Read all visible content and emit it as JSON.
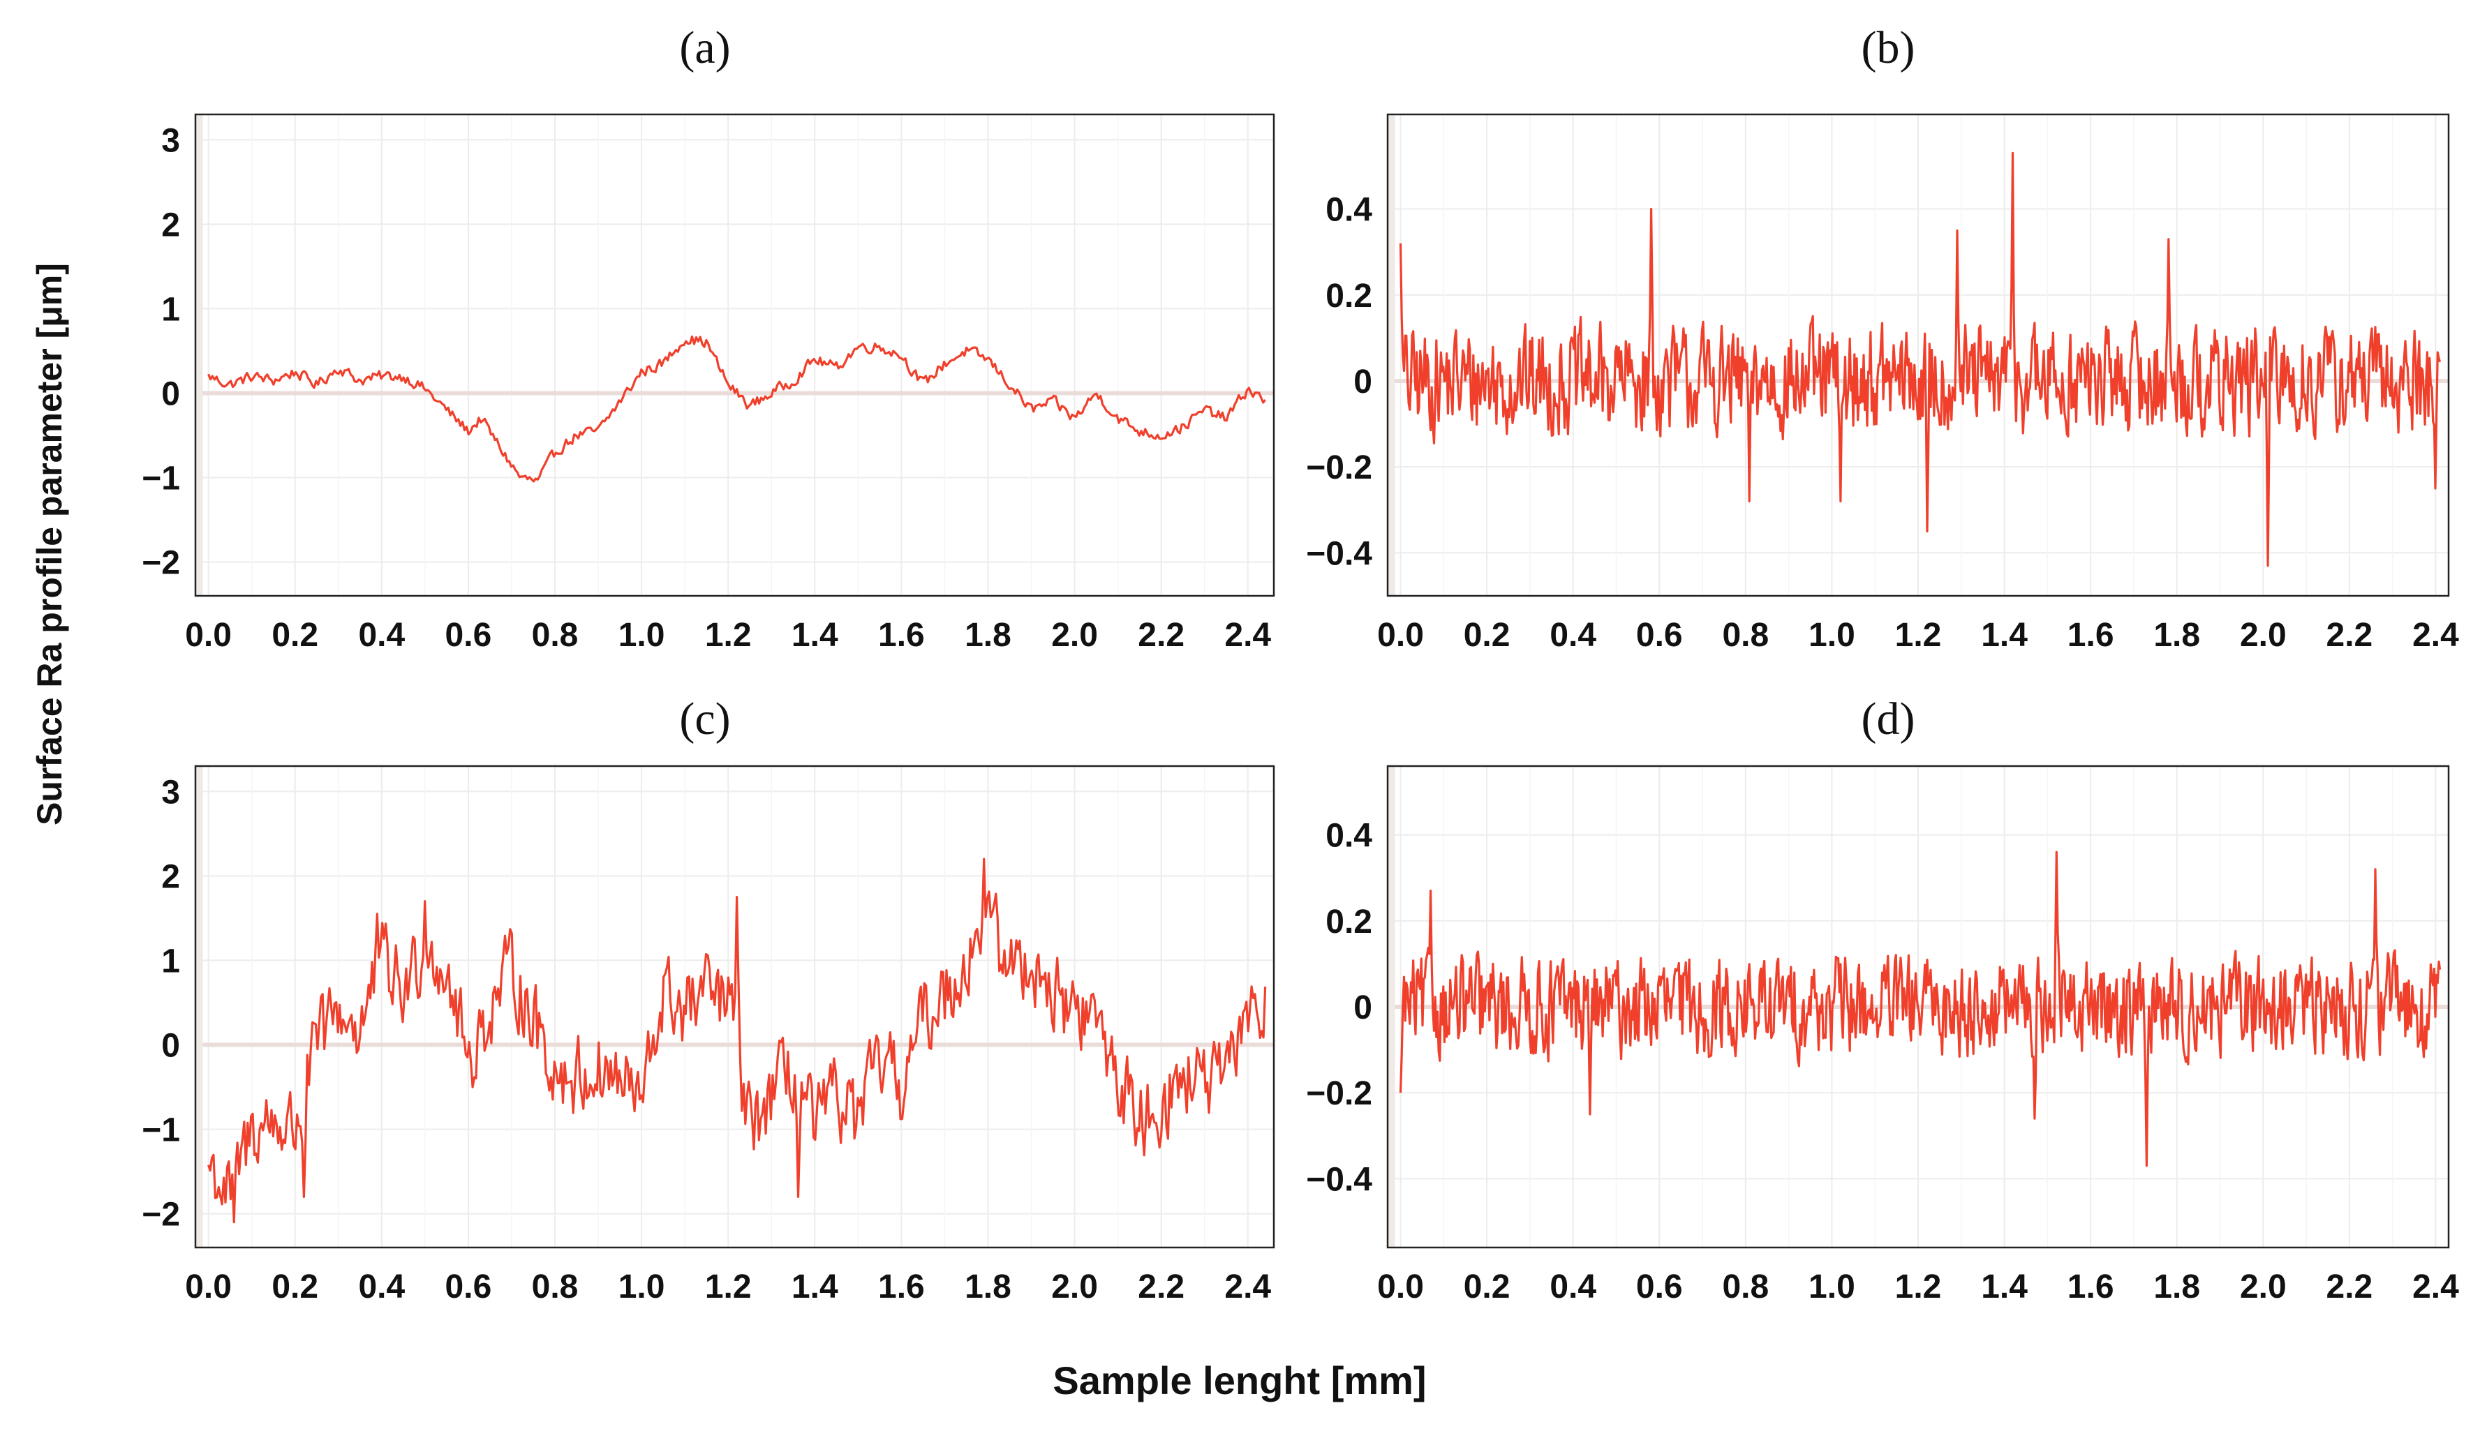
{
  "figure": {
    "ylabel": "Surface Ra profile parameter [μm]",
    "xlabel": "Sample lenght [mm]",
    "line_color": "#f0402c"
  },
  "chart_data": [
    {
      "panel": "(a)",
      "type": "line",
      "title": "(a)",
      "xlim": [
        -0.03,
        2.46
      ],
      "ylim": [
        -2.4,
        3.3
      ],
      "xticks": [
        0.0,
        0.2,
        0.4,
        0.6,
        0.8,
        1.0,
        1.2,
        1.4,
        1.6,
        1.8,
        2.0,
        2.2,
        2.4
      ],
      "xtick_labels": [
        "0.0",
        "0.2",
        "0.4",
        "0.6",
        "0.8",
        "1.0",
        "1.2",
        "1.4",
        "1.6",
        "1.8",
        "2.0",
        "2.2",
        "2.4"
      ],
      "yticks": [
        -2,
        -1,
        0,
        1,
        2,
        3
      ],
      "ytick_labels": [
        "−2",
        "−1",
        "0",
        "1",
        "2",
        "3"
      ],
      "grid": true,
      "anchors": [
        [
          0.0,
          0.2
        ],
        [
          0.05,
          0.1
        ],
        [
          0.1,
          0.2
        ],
        [
          0.15,
          0.15
        ],
        [
          0.2,
          0.25
        ],
        [
          0.25,
          0.1
        ],
        [
          0.3,
          0.3
        ],
        [
          0.35,
          0.15
        ],
        [
          0.4,
          0.2
        ],
        [
          0.45,
          0.2
        ],
        [
          0.5,
          0.05
        ],
        [
          0.55,
          -0.2
        ],
        [
          0.6,
          -0.45
        ],
        [
          0.63,
          -0.3
        ],
        [
          0.68,
          -0.7
        ],
        [
          0.72,
          -1.0
        ],
        [
          0.76,
          -1.05
        ],
        [
          0.8,
          -0.7
        ],
        [
          0.85,
          -0.5
        ],
        [
          0.9,
          -0.45
        ],
        [
          0.95,
          -0.1
        ],
        [
          1.0,
          0.25
        ],
        [
          1.05,
          0.35
        ],
        [
          1.1,
          0.65
        ],
        [
          1.15,
          0.6
        ],
        [
          1.2,
          0.1
        ],
        [
          1.25,
          -0.15
        ],
        [
          1.3,
          0.0
        ],
        [
          1.35,
          0.15
        ],
        [
          1.4,
          0.4
        ],
        [
          1.45,
          0.3
        ],
        [
          1.5,
          0.55
        ],
        [
          1.55,
          0.55
        ],
        [
          1.6,
          0.45
        ],
        [
          1.65,
          0.1
        ],
        [
          1.7,
          0.35
        ],
        [
          1.75,
          0.5
        ],
        [
          1.8,
          0.4
        ],
        [
          1.85,
          0.1
        ],
        [
          1.9,
          -0.2
        ],
        [
          1.95,
          -0.1
        ],
        [
          2.0,
          -0.3
        ],
        [
          2.05,
          0.0
        ],
        [
          2.1,
          -0.3
        ],
        [
          2.15,
          -0.45
        ],
        [
          2.2,
          -0.5
        ],
        [
          2.25,
          -0.4
        ],
        [
          2.3,
          -0.2
        ],
        [
          2.35,
          -0.3
        ],
        [
          2.4,
          0.05
        ],
        [
          2.44,
          -0.1
        ]
      ],
      "noise_amplitude": 0.06,
      "n_points": 520
    },
    {
      "panel": "(b)",
      "type": "line",
      "title": "(b)",
      "xlim": [
        -0.03,
        2.43
      ],
      "ylim": [
        -0.5,
        0.62
      ],
      "xticks": [
        0.0,
        0.2,
        0.4,
        0.6,
        0.8,
        1.0,
        1.2,
        1.4,
        1.6,
        1.8,
        2.0,
        2.2,
        2.4
      ],
      "xtick_labels": [
        "0.0",
        "0.2",
        "0.4",
        "0.6",
        "0.8",
        "1.0",
        "1.2",
        "1.4",
        "1.6",
        "1.8",
        "2.0",
        "2.2",
        "2.4"
      ],
      "yticks": [
        -0.4,
        -0.2,
        0,
        0.2,
        0.4
      ],
      "ytick_labels": [
        "−0.4",
        "−0.2",
        "0",
        "0.2",
        "0.4"
      ],
      "grid": true,
      "anchors": [
        [
          0.0,
          0.0
        ],
        [
          2.41,
          0.0
        ]
      ],
      "peaks": [
        [
          0.0,
          0.32
        ],
        [
          0.58,
          0.4
        ],
        [
          1.42,
          0.53
        ],
        [
          1.29,
          0.35
        ],
        [
          1.78,
          0.33
        ],
        [
          2.01,
          -0.43
        ],
        [
          1.22,
          -0.35
        ],
        [
          0.81,
          -0.28
        ],
        [
          1.02,
          -0.28
        ],
        [
          2.4,
          -0.25
        ]
      ],
      "noise_amplitude": 0.11,
      "n_points": 900
    },
    {
      "panel": "(c)",
      "type": "line",
      "title": "(c)",
      "xlim": [
        -0.03,
        2.46
      ],
      "ylim": [
        -2.4,
        3.3
      ],
      "xticks": [
        0.0,
        0.2,
        0.4,
        0.6,
        0.8,
        1.0,
        1.2,
        1.4,
        1.6,
        1.8,
        2.0,
        2.2,
        2.4
      ],
      "xtick_labels": [
        "0.0",
        "0.2",
        "0.4",
        "0.6",
        "0.8",
        "1.0",
        "1.2",
        "1.4",
        "1.6",
        "1.8",
        "2.0",
        "2.2",
        "2.4"
      ],
      "yticks": [
        -2,
        -1,
        0,
        1,
        2,
        3
      ],
      "ytick_labels": [
        "−2",
        "−1",
        "0",
        "1",
        "2",
        "3"
      ],
      "grid": true,
      "anchors": [
        [
          0.0,
          -1.4
        ],
        [
          0.05,
          -1.8
        ],
        [
          0.1,
          -1.0
        ],
        [
          0.15,
          -0.9
        ],
        [
          0.2,
          -1.0
        ],
        [
          0.25,
          0.0
        ],
        [
          0.3,
          0.4
        ],
        [
          0.35,
          0.2
        ],
        [
          0.4,
          1.0
        ],
        [
          0.45,
          0.6
        ],
        [
          0.5,
          1.2
        ],
        [
          0.55,
          0.9
        ],
        [
          0.6,
          -0.2
        ],
        [
          0.65,
          0.4
        ],
        [
          0.7,
          0.9
        ],
        [
          0.75,
          0.3
        ],
        [
          0.8,
          -0.3
        ],
        [
          0.85,
          -0.4
        ],
        [
          0.9,
          -0.3
        ],
        [
          0.95,
          -0.4
        ],
        [
          1.0,
          -0.7
        ],
        [
          1.05,
          0.6
        ],
        [
          1.1,
          0.4
        ],
        [
          1.15,
          0.6
        ],
        [
          1.2,
          0.5
        ],
        [
          1.25,
          -1.0
        ],
        [
          1.3,
          -0.6
        ],
        [
          1.35,
          -0.3
        ],
        [
          1.4,
          -1.0
        ],
        [
          1.45,
          -0.6
        ],
        [
          1.5,
          -0.9
        ],
        [
          1.55,
          -0.2
        ],
        [
          1.6,
          -0.5
        ],
        [
          1.65,
          0.3
        ],
        [
          1.7,
          0.6
        ],
        [
          1.75,
          1.0
        ],
        [
          1.8,
          1.5
        ],
        [
          1.85,
          0.9
        ],
        [
          1.9,
          1.0
        ],
        [
          1.95,
          0.6
        ],
        [
          2.0,
          0.4
        ],
        [
          2.05,
          0.3
        ],
        [
          2.1,
          -0.4
        ],
        [
          2.15,
          -0.9
        ],
        [
          2.2,
          -0.7
        ],
        [
          2.25,
          -0.4
        ],
        [
          2.3,
          -0.4
        ],
        [
          2.35,
          -0.5
        ],
        [
          2.4,
          0.5
        ],
        [
          2.44,
          0.4
        ]
      ],
      "peaks": [
        [
          1.22,
          1.75
        ],
        [
          1.79,
          2.2
        ],
        [
          0.5,
          1.7
        ],
        [
          0.39,
          1.55
        ],
        [
          0.06,
          -2.1
        ],
        [
          1.36,
          -1.8
        ],
        [
          0.22,
          -1.8
        ]
      ],
      "noise_amplitude": 0.42,
      "n_points": 620
    },
    {
      "panel": "(d)",
      "type": "line",
      "title": "(d)",
      "xlim": [
        -0.03,
        2.43
      ],
      "ylim": [
        -0.56,
        0.56
      ],
      "xticks": [
        0.0,
        0.2,
        0.4,
        0.6,
        0.8,
        1.0,
        1.2,
        1.4,
        1.6,
        1.8,
        2.0,
        2.2,
        2.4
      ],
      "xtick_labels": [
        "0.0",
        "0.2",
        "0.4",
        "0.6",
        "0.8",
        "1.0",
        "1.2",
        "1.4",
        "1.6",
        "1.8",
        "2.0",
        "2.2",
        "2.4"
      ],
      "yticks": [
        -0.4,
        -0.2,
        0,
        0.2,
        0.4
      ],
      "ytick_labels": [
        "−0.4",
        "−0.2",
        "0",
        "0.2",
        "0.4"
      ],
      "grid": true,
      "anchors": [
        [
          0.0,
          0.0
        ],
        [
          2.41,
          0.0
        ]
      ],
      "peaks": [
        [
          1.52,
          0.36
        ],
        [
          2.26,
          0.32
        ],
        [
          0.07,
          0.27
        ],
        [
          1.73,
          -0.37
        ],
        [
          0.0,
          -0.2
        ],
        [
          0.44,
          -0.25
        ],
        [
          1.47,
          -0.26
        ]
      ],
      "noise_amplitude": 0.1,
      "n_points": 900
    }
  ]
}
